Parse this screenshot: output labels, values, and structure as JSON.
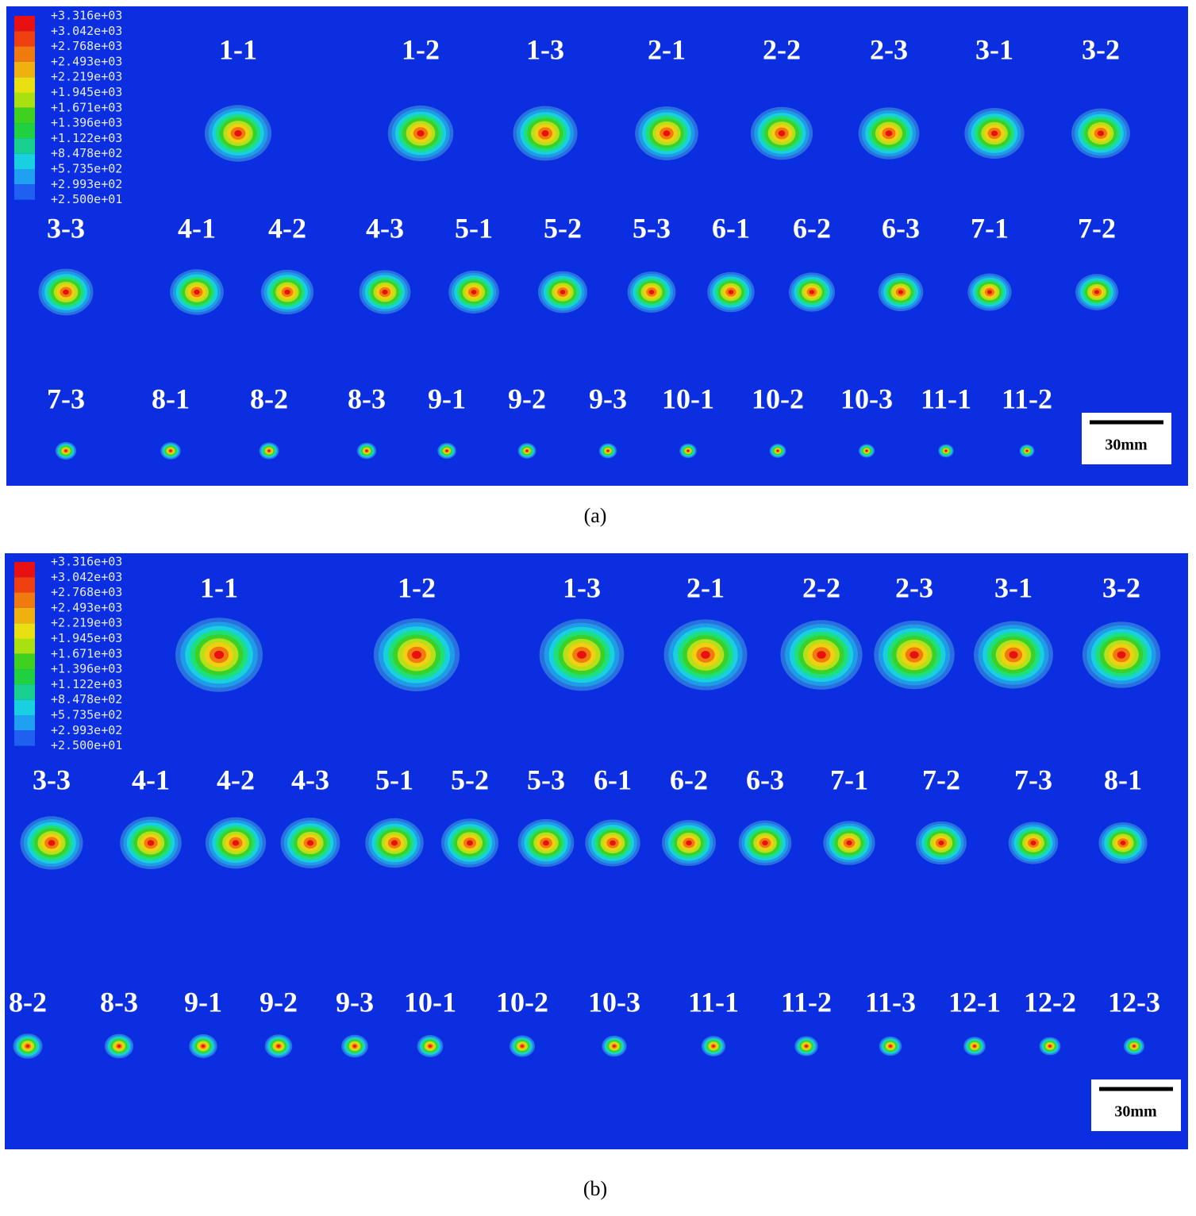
{
  "panels": [
    {
      "legend": [
        "+3.316e+03",
        "+3.042e+03",
        "+2.768e+03",
        "+2.493e+03",
        "+2.219e+03",
        "+1.945e+03",
        "+1.671e+03",
        "+1.396e+03",
        "+1.122e+03",
        "+8.478e+02",
        "+5.735e+02",
        "+2.993e+02",
        "+2.500e+01"
      ],
      "rows": [
        [
          "1-1",
          "1-2",
          "1-3",
          "2-1",
          "2-2",
          "2-3",
          "3-1",
          "3-2"
        ],
        [
          "3-3",
          "4-1",
          "4-2",
          "4-3",
          "5-1",
          "5-2",
          "5-3",
          "6-1",
          "6-2",
          "6-3",
          "7-1",
          "7-2"
        ],
        [
          "7-3",
          "8-1",
          "8-2",
          "8-3",
          "9-1",
          "9-2",
          "9-3",
          "10-1",
          "10-2",
          "10-3",
          "11-1",
          "11-2"
        ]
      ],
      "scale_bar": "30mm",
      "caption": "(a)"
    },
    {
      "legend": [
        "+3.316e+03",
        "+3.042e+03",
        "+2.768e+03",
        "+2.493e+03",
        "+2.219e+03",
        "+1.945e+03",
        "+1.671e+03",
        "+1.396e+03",
        "+1.122e+03",
        "+8.478e+02",
        "+5.735e+02",
        "+2.993e+02",
        "+2.500e+01"
      ],
      "rows": [
        [
          "1-1",
          "1-2",
          "1-3",
          "2-1",
          "2-2",
          "2-3",
          "3-1",
          "3-2"
        ],
        [
          "3-3",
          "4-1",
          "4-2",
          "4-3",
          "5-1",
          "5-2",
          "5-3",
          "6-1",
          "6-2",
          "6-3",
          "7-1",
          "7-2",
          "7-3",
          "8-1"
        ],
        [
          "8-2",
          "8-3",
          "9-1",
          "9-2",
          "9-3",
          "10-1",
          "10-2",
          "10-3",
          "11-1",
          "11-2",
          "11-3",
          "12-1",
          "12-2",
          "12-3"
        ]
      ],
      "scale_bar": "30mm",
      "caption": "(b)"
    }
  ]
}
